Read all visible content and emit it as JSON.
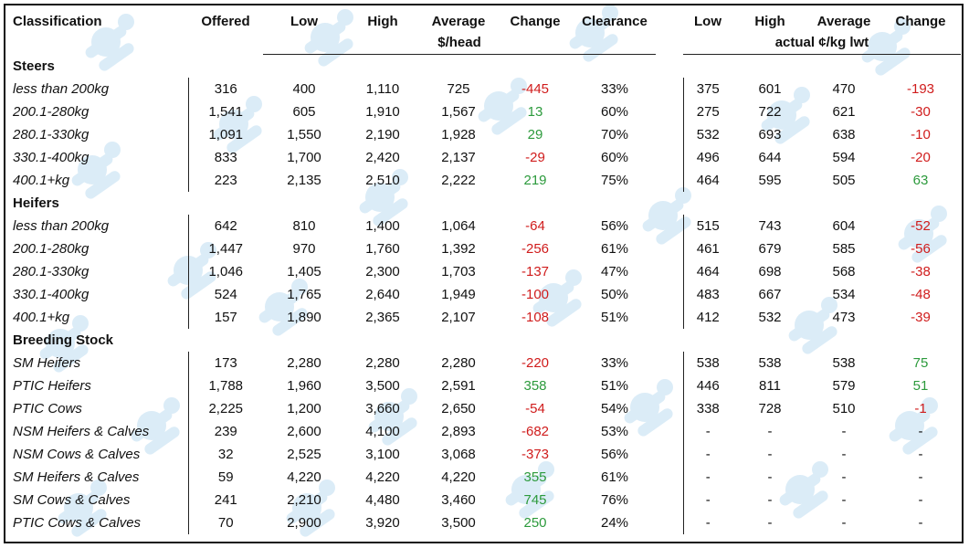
{
  "header": {
    "classification": "Classification",
    "offered": "Offered",
    "low": "Low",
    "high": "High",
    "average": "Average",
    "change": "Change",
    "clearance": "Clearance",
    "low2": "Low",
    "high2": "High",
    "average2": "Average",
    "change2": "Change",
    "unit_head": "$/head",
    "unit_kg": "actual ¢/kg lwt"
  },
  "sections": [
    {
      "title": "Steers",
      "rows": [
        {
          "name": "less than 200kg",
          "offered": "316",
          "low": "400",
          "high": "1,110",
          "avg": "725",
          "change": "-445",
          "clearance": "33%",
          "low2": "375",
          "high2": "601",
          "avg2": "470",
          "change2": "-193"
        },
        {
          "name": "200.1-280kg",
          "offered": "1,541",
          "low": "605",
          "high": "1,910",
          "avg": "1,567",
          "change": "13",
          "clearance": "60%",
          "low2": "275",
          "high2": "722",
          "avg2": "621",
          "change2": "-30"
        },
        {
          "name": "280.1-330kg",
          "offered": "1,091",
          "low": "1,550",
          "high": "2,190",
          "avg": "1,928",
          "change": "29",
          "clearance": "70%",
          "low2": "532",
          "high2": "693",
          "avg2": "638",
          "change2": "-10"
        },
        {
          "name": "330.1-400kg",
          "offered": "833",
          "low": "1,700",
          "high": "2,420",
          "avg": "2,137",
          "change": "-29",
          "clearance": "60%",
          "low2": "496",
          "high2": "644",
          "avg2": "594",
          "change2": "-20"
        },
        {
          "name": "400.1+kg",
          "offered": "223",
          "low": "2,135",
          "high": "2,510",
          "avg": "2,222",
          "change": "219",
          "clearance": "75%",
          "low2": "464",
          "high2": "595",
          "avg2": "505",
          "change2": "63"
        }
      ]
    },
    {
      "title": "Heifers",
      "rows": [
        {
          "name": "less than 200kg",
          "offered": "642",
          "low": "810",
          "high": "1,400",
          "avg": "1,064",
          "change": "-64",
          "clearance": "56%",
          "low2": "515",
          "high2": "743",
          "avg2": "604",
          "change2": "-52"
        },
        {
          "name": "200.1-280kg",
          "offered": "1,447",
          "low": "970",
          "high": "1,760",
          "avg": "1,392",
          "change": "-256",
          "clearance": "61%",
          "low2": "461",
          "high2": "679",
          "avg2": "585",
          "change2": "-56"
        },
        {
          "name": "280.1-330kg",
          "offered": "1,046",
          "low": "1,405",
          "high": "2,300",
          "avg": "1,703",
          "change": "-137",
          "clearance": "47%",
          "low2": "464",
          "high2": "698",
          "avg2": "568",
          "change2": "-38"
        },
        {
          "name": "330.1-400kg",
          "offered": "524",
          "low": "1,765",
          "high": "2,640",
          "avg": "1,949",
          "change": "-100",
          "clearance": "50%",
          "low2": "483",
          "high2": "667",
          "avg2": "534",
          "change2": "-48"
        },
        {
          "name": "400.1+kg",
          "offered": "157",
          "low": "1,890",
          "high": "2,365",
          "avg": "2,107",
          "change": "-108",
          "clearance": "51%",
          "low2": "412",
          "high2": "532",
          "avg2": "473",
          "change2": "-39"
        }
      ]
    },
    {
      "title": "Breeding Stock",
      "rows": [
        {
          "name": "SM Heifers",
          "offered": "173",
          "low": "2,280",
          "high": "2,280",
          "avg": "2,280",
          "change": "-220",
          "clearance": "33%",
          "low2": "538",
          "high2": "538",
          "avg2": "538",
          "change2": "75"
        },
        {
          "name": "PTIC Heifers",
          "offered": "1,788",
          "low": "1,960",
          "high": "3,500",
          "avg": "2,591",
          "change": "358",
          "clearance": "51%",
          "low2": "446",
          "high2": "811",
          "avg2": "579",
          "change2": "51"
        },
        {
          "name": "PTIC Cows",
          "offered": "2,225",
          "low": "1,200",
          "high": "3,660",
          "avg": "2,650",
          "change": "-54",
          "clearance": "54%",
          "low2": "338",
          "high2": "728",
          "avg2": "510",
          "change2": "-1"
        },
        {
          "name": "NSM Heifers & Calves",
          "offered": "239",
          "low": "2,600",
          "high": "4,100",
          "avg": "2,893",
          "change": "-682",
          "clearance": "53%",
          "low2": "-",
          "high2": "-",
          "avg2": "-",
          "change2": "-"
        },
        {
          "name": "NSM Cows & Calves",
          "offered": "32",
          "low": "2,525",
          "high": "3,100",
          "avg": "3,068",
          "change": "-373",
          "clearance": "56%",
          "low2": "-",
          "high2": "-",
          "avg2": "-",
          "change2": "-"
        },
        {
          "name": "SM Heifers & Calves",
          "offered": "59",
          "low": "4,220",
          "high": "4,220",
          "avg": "4,220",
          "change": "355",
          "clearance": "61%",
          "low2": "-",
          "high2": "-",
          "avg2": "-",
          "change2": "-"
        },
        {
          "name": "SM Cows & Calves",
          "offered": "241",
          "low": "2,210",
          "high": "4,480",
          "avg": "3,460",
          "change": "745",
          "clearance": "76%",
          "low2": "-",
          "high2": "-",
          "avg2": "-",
          "change2": "-"
        },
        {
          "name": "PTIC Cows & Calves",
          "offered": "70",
          "low": "2,900",
          "high": "3,920",
          "avg": "3,500",
          "change": "250",
          "clearance": "24%",
          "low2": "-",
          "high2": "-",
          "avg2": "-",
          "change2": "-"
        }
      ]
    }
  ],
  "colors": {
    "negative": "#d01c1c",
    "positive": "#2c9a3c",
    "border": "#111111",
    "watermark": "#cfe6f5"
  },
  "watermark_icon": "cattle-logo-icon"
}
